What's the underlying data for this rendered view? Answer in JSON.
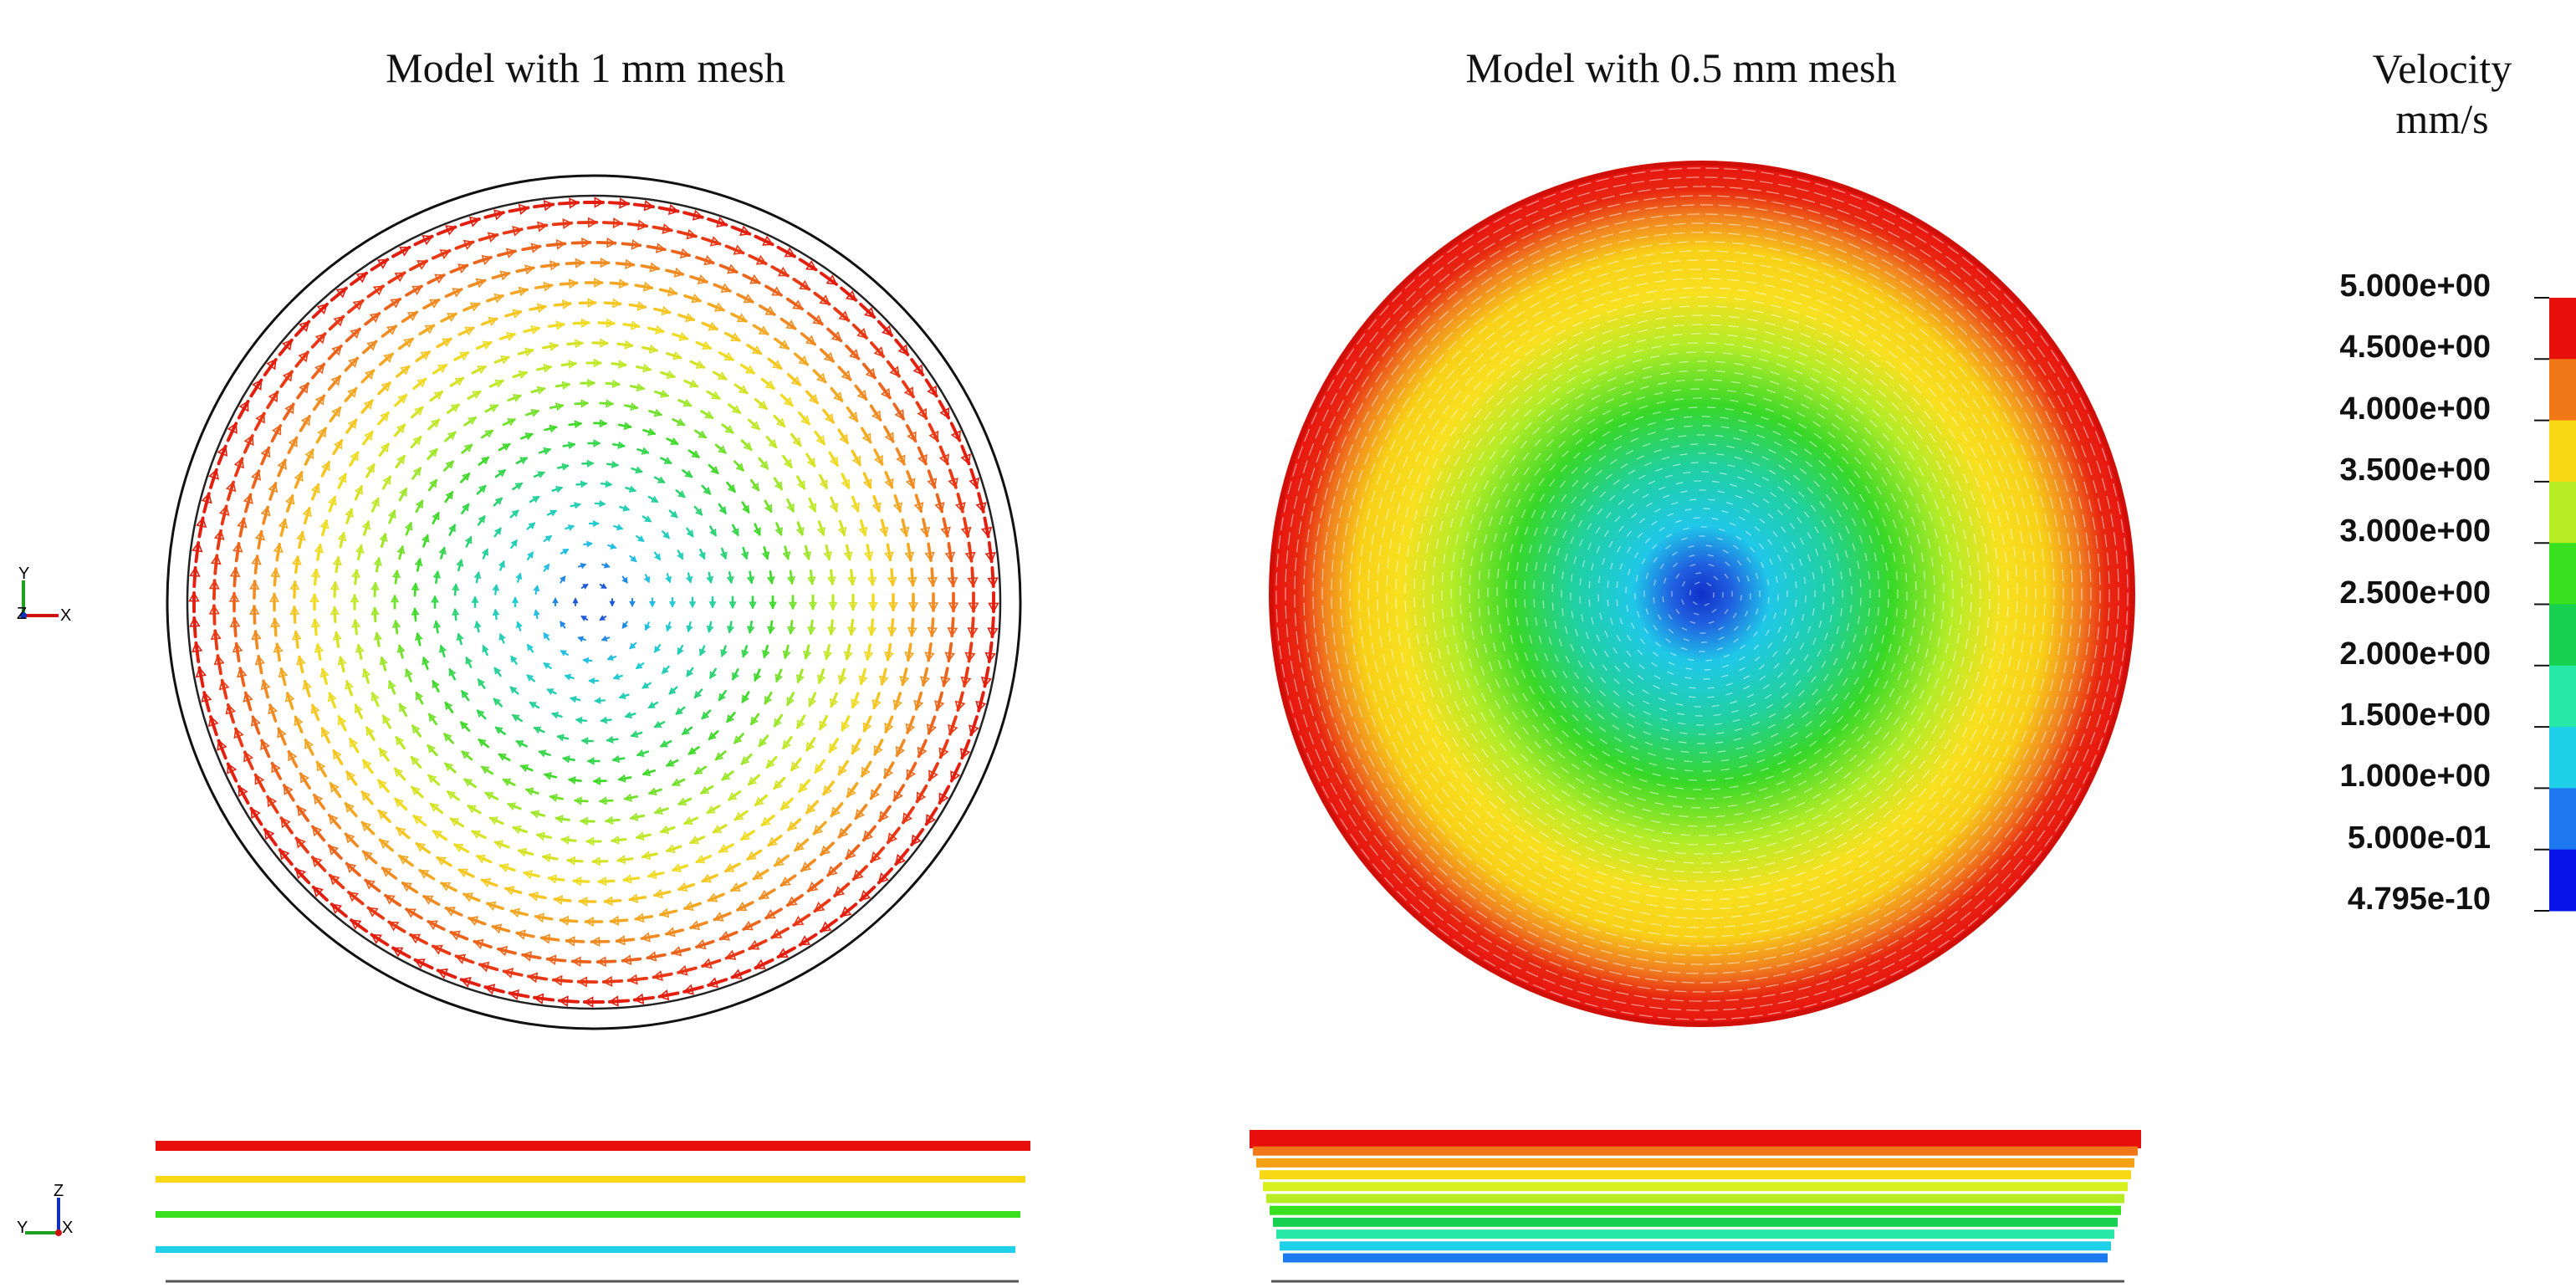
{
  "panels": {
    "left": {
      "title": "Model with 1 mm mesh"
    },
    "right": {
      "title": "Model with 0.5 mm mesh"
    }
  },
  "legend": {
    "title_line1": "Velocity",
    "title_line2": "mm/s",
    "ticks": [
      "5.000e+00",
      "4.500e+00",
      "4.000e+00",
      "3.500e+00",
      "3.000e+00",
      "2.500e+00",
      "2.000e+00",
      "1.500e+00",
      "1.000e+00",
      "5.000e-01",
      "4.795e-10"
    ],
    "colors": [
      "#e8100c",
      "#f07818",
      "#f8d814",
      "#b8ec24",
      "#38e020",
      "#18d050",
      "#28e8a8",
      "#20d0e8",
      "#1e78f0",
      "#0a14e8"
    ]
  },
  "triads": {
    "top": {
      "a": "Y",
      "b": "Z",
      "c": "X"
    },
    "bottom": {
      "a": "Z",
      "b": "Y",
      "c": "X"
    }
  },
  "side_views": {
    "left_lines": [
      "#e8100c",
      "#f8d814",
      "#38e020",
      "#20d0e8"
    ],
    "right_lines": [
      "#e8100c",
      "#f07818",
      "#f8a014",
      "#f8d814",
      "#d8f020",
      "#b8ec24",
      "#38e020",
      "#18d050",
      "#28e8a8",
      "#20d0e8",
      "#1e78f0"
    ]
  }
}
